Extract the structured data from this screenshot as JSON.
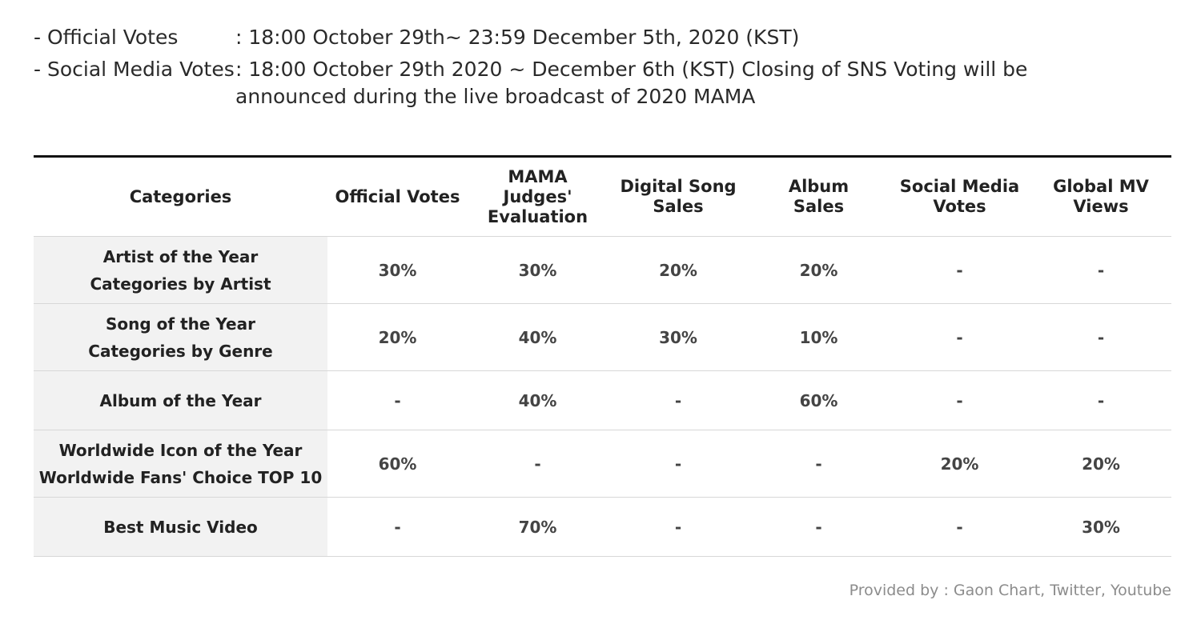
{
  "schedule": {
    "official": {
      "label": "- Official Votes",
      "value": ": 18:00 October 29th~ 23:59 December 5th, 2020 (KST)"
    },
    "social": {
      "label": "- Social Media Votes",
      "value": ": 18:00 October 29th 2020 ~ December 6th (KST) Closing of SNS Voting will be announced during the live broadcast of 2020 MAMA"
    }
  },
  "table": {
    "headers": {
      "categories": "Categories",
      "official_votes": "Official Votes",
      "judges_line1": "MAMA Judges'",
      "judges_line2": "Evaluation",
      "digital_line1": "Digital Song",
      "digital_line2": "Sales",
      "album_line1": "Album",
      "album_line2": "Sales",
      "social_line1": "Social Media",
      "social_line2": "Votes",
      "global_mv": "Global MV Views"
    },
    "rows": [
      {
        "category_line1": "Artist of the Year",
        "category_line2": "Categories by Artist",
        "values": [
          "30%",
          "30%",
          "20%",
          "20%",
          "-",
          "-"
        ]
      },
      {
        "category_line1": "Song of the Year",
        "category_line2": "Categories by Genre",
        "values": [
          "20%",
          "40%",
          "30%",
          "10%",
          "-",
          "-"
        ]
      },
      {
        "category_line1": "Album of the Year",
        "category_line2": "",
        "values": [
          "-",
          "40%",
          "-",
          "60%",
          "-",
          "-"
        ]
      },
      {
        "category_line1": "Worldwide Icon of the Year",
        "category_line2": "Worldwide Fans' Choice TOP 10",
        "values": [
          "60%",
          "-",
          "-",
          "-",
          "20%",
          "20%"
        ]
      },
      {
        "category_line1": "Best Music Video",
        "category_line2": "",
        "values": [
          "-",
          "70%",
          "-",
          "-",
          "-",
          "30%"
        ]
      }
    ]
  },
  "footer": {
    "provided_by": "Provided by : Gaon Chart, Twitter, Youtube"
  }
}
